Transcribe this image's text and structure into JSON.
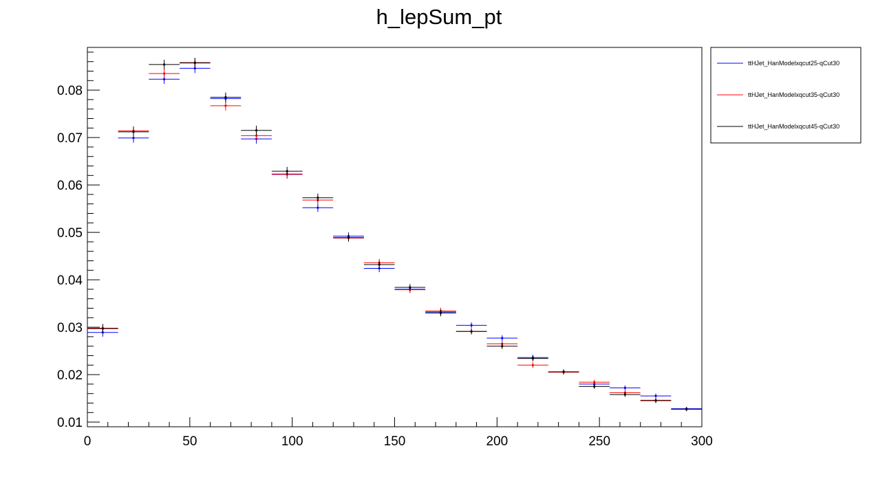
{
  "chart_data": {
    "type": "scatter",
    "title": "h_lepSum_pt",
    "xlabel": "",
    "ylabel": "",
    "xlim": [
      0,
      300
    ],
    "ylim": [
      0.009,
      0.089
    ],
    "xticks": [
      0,
      50,
      100,
      150,
      200,
      250,
      300
    ],
    "xtick_labels": [
      "0",
      "50",
      "100",
      "150",
      "200",
      "250",
      "300"
    ],
    "yticks": [
      0.01,
      0.02,
      0.03,
      0.04,
      0.05,
      0.06,
      0.07,
      0.08
    ],
    "ytick_labels": [
      "0.01",
      "0.02",
      "0.03",
      "0.04",
      "0.05",
      "0.06",
      "0.07",
      "0.08"
    ],
    "grid": false,
    "legend_position": "outside-right-top",
    "bin_width": 15,
    "x": [
      7.5,
      22.5,
      37.5,
      52.5,
      67.5,
      82.5,
      97.5,
      112.5,
      127.5,
      142.5,
      157.5,
      172.5,
      187.5,
      202.5,
      217.5,
      232.5,
      247.5,
      262.5,
      277.5,
      292.5
    ],
    "series": [
      {
        "name": "ttHJet_HanModelxqcut25-qCut30",
        "color": "#0000ff",
        "values": [
          0.0289,
          0.0699,
          0.0823,
          0.0846,
          0.0782,
          0.0697,
          0.0623,
          0.0552,
          0.0492,
          0.0424,
          0.038,
          0.0332,
          0.0304,
          0.0277,
          0.0236,
          0.0206,
          0.018,
          0.0172,
          0.0155,
          0.0128
        ],
        "errors": [
          0.0009,
          0.001,
          0.001,
          0.001,
          0.001,
          0.001,
          0.0009,
          0.0009,
          0.0008,
          0.0008,
          0.0007,
          0.0007,
          0.0006,
          0.0006,
          0.0006,
          0.0005,
          0.0005,
          0.0005,
          0.0005,
          0.0004
        ]
      },
      {
        "name": "ttHJet_HanModelxqcut35-qCut30",
        "color": "#ff0000",
        "values": [
          0.0298,
          0.0714,
          0.0835,
          0.0857,
          0.0767,
          0.0704,
          0.0622,
          0.0568,
          0.0488,
          0.0436,
          0.0379,
          0.0334,
          0.0291,
          0.0265,
          0.022,
          0.0205,
          0.0184,
          0.0162,
          0.0146,
          0.0127
        ],
        "errors": [
          0.0009,
          0.001,
          0.001,
          0.001,
          0.001,
          0.001,
          0.0009,
          0.0009,
          0.0008,
          0.0008,
          0.0007,
          0.0007,
          0.0006,
          0.0006,
          0.0006,
          0.0005,
          0.0005,
          0.0005,
          0.0005,
          0.0004
        ]
      },
      {
        "name": "ttHJet_HanModelxqcut45-qCut30",
        "color": "#000000",
        "values": [
          0.0297,
          0.0712,
          0.0854,
          0.0858,
          0.0785,
          0.0715,
          0.0629,
          0.0573,
          0.0489,
          0.0432,
          0.0384,
          0.033,
          0.0291,
          0.026,
          0.0234,
          0.0206,
          0.0175,
          0.0158,
          0.0145,
          0.0127
        ],
        "errors": [
          0.0009,
          0.001,
          0.001,
          0.001,
          0.001,
          0.001,
          0.0009,
          0.0009,
          0.0008,
          0.0008,
          0.0007,
          0.0007,
          0.0006,
          0.0006,
          0.0006,
          0.0005,
          0.0005,
          0.0005,
          0.0005,
          0.0004
        ]
      }
    ]
  }
}
